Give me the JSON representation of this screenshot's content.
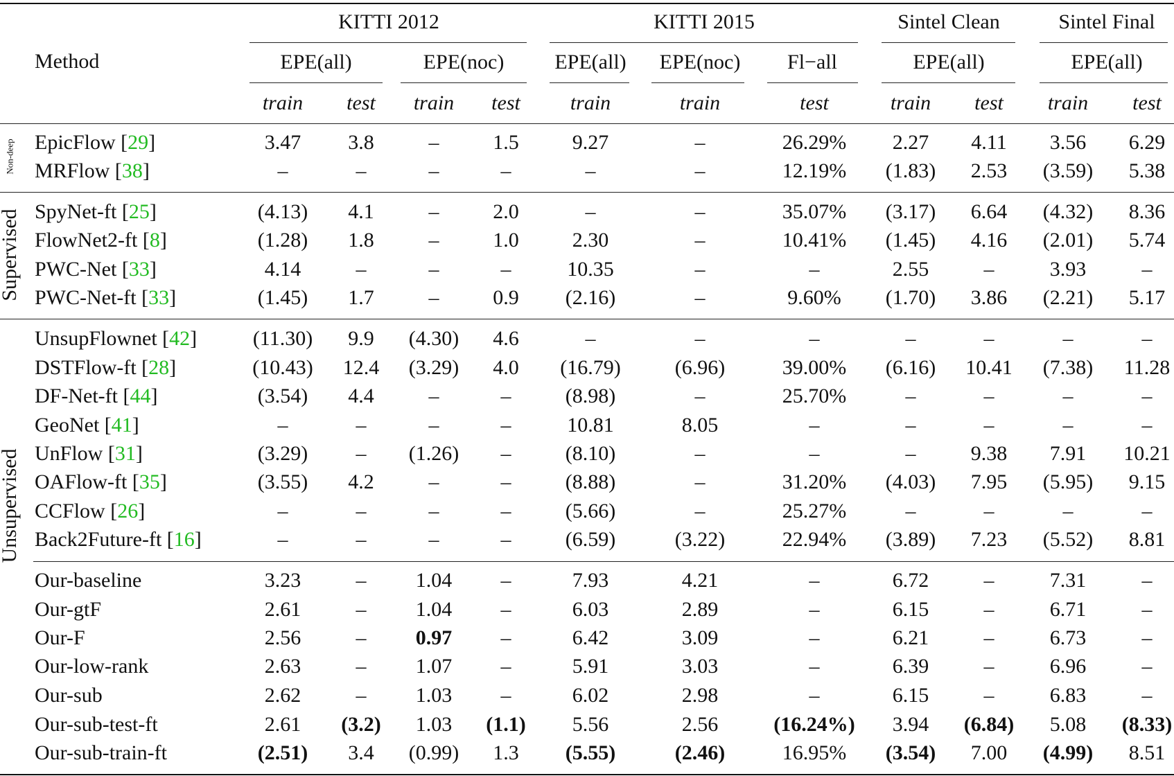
{
  "header": {
    "method": "Method",
    "groups": [
      "KITTI 2012",
      "KITTI 2015",
      "Sintel Clean",
      "Sintel Final"
    ],
    "metrics": [
      "EPE(all)",
      "EPE(noc)",
      "EPE(all)",
      "EPE(noc)",
      "Fl−all",
      "EPE(all)",
      "EPE(all)"
    ],
    "splits": [
      "train",
      "test",
      "train",
      "test",
      "train",
      "train",
      "test",
      "train",
      "test",
      "train",
      "test"
    ]
  },
  "section_labels": [
    "Non-deep",
    "Supervised",
    "Unsupervised"
  ],
  "rows": [
    {
      "name": "EpicFlow [",
      "cite": "29",
      "close": "]",
      "cells": [
        "3.47",
        "3.8",
        "–",
        "1.5",
        "9.27",
        "–",
        "26.29%",
        "2.27",
        "4.11",
        "3.56",
        "6.29"
      ]
    },
    {
      "name": "MRFlow [",
      "cite": "38",
      "close": "]",
      "cells": [
        "–",
        "–",
        "–",
        "–",
        "–",
        "–",
        "12.19%",
        "(1.83)",
        "2.53",
        "(3.59)",
        "5.38"
      ]
    },
    {
      "name": "SpyNet-ft [",
      "cite": "25",
      "close": "]",
      "cells": [
        "(4.13)",
        "4.1",
        "–",
        "2.0",
        "–",
        "–",
        "35.07%",
        "(3.17)",
        "6.64",
        "(4.32)",
        "8.36"
      ]
    },
    {
      "name": "FlowNet2-ft [",
      "cite": "8",
      "close": "]",
      "cells": [
        "(1.28)",
        "1.8",
        "–",
        "1.0",
        "2.30",
        "–",
        "10.41%",
        "(1.45)",
        "4.16",
        "(2.01)",
        "5.74"
      ]
    },
    {
      "name": "PWC-Net [",
      "cite": "33",
      "close": "]",
      "cells": [
        "4.14",
        "–",
        "–",
        "–",
        "10.35",
        "–",
        "–",
        "2.55",
        "–",
        "3.93",
        "–"
      ]
    },
    {
      "name": "PWC-Net-ft [",
      "cite": "33",
      "close": "]",
      "cells": [
        "(1.45)",
        "1.7",
        "–",
        "0.9",
        "(2.16)",
        "–",
        "9.60%",
        "(1.70)",
        "3.86",
        "(2.21)",
        "5.17"
      ]
    },
    {
      "name": "UnsupFlownet [",
      "cite": "42",
      "close": "]",
      "cells": [
        "(11.30)",
        "9.9",
        "(4.30)",
        "4.6",
        "–",
        "–",
        "–",
        "–",
        "–",
        "–",
        "–"
      ]
    },
    {
      "name": "DSTFlow-ft [",
      "cite": "28",
      "close": "]",
      "cells": [
        "(10.43)",
        "12.4",
        "(3.29)",
        "4.0",
        "(16.79)",
        "(6.96)",
        "39.00%",
        "(6.16)",
        "10.41",
        "(7.38)",
        "11.28"
      ]
    },
    {
      "name": "DF-Net-ft [",
      "cite": "44",
      "close": "]",
      "cells": [
        "(3.54)",
        "4.4",
        "–",
        "–",
        "(8.98)",
        "–",
        "25.70%",
        "–",
        "–",
        "–",
        "–"
      ]
    },
    {
      "name": "GeoNet [",
      "cite": "41",
      "close": "]",
      "cells": [
        "–",
        "–",
        "–",
        "–",
        "10.81",
        "8.05",
        "–",
        "–",
        "–",
        "–",
        "–"
      ]
    },
    {
      "name": "UnFlow [",
      "cite": "31",
      "close": "]",
      "cells": [
        "(3.29)",
        "–",
        "(1.26)",
        "–",
        "(8.10)",
        "–",
        "–",
        "–",
        "9.38",
        "7.91",
        "10.21"
      ]
    },
    {
      "name": "OAFlow-ft [",
      "cite": "35",
      "close": "]",
      "cells": [
        "(3.55)",
        "4.2",
        "–",
        "–",
        "(8.88)",
        "–",
        "31.20%",
        "(4.03)",
        "7.95",
        "(5.95)",
        "9.15"
      ]
    },
    {
      "name": "CCFlow [",
      "cite": "26",
      "close": "]",
      "cells": [
        "–",
        "–",
        "–",
        "–",
        "(5.66)",
        "–",
        "25.27%",
        "–",
        "–",
        "–",
        "–"
      ]
    },
    {
      "name": "Back2Future-ft [",
      "cite": "16",
      "close": "]",
      "cells": [
        "–",
        "–",
        "–",
        "–",
        "(6.59)",
        "(3.22)",
        "22.94%",
        "(3.89)",
        "7.23",
        "(5.52)",
        "8.81"
      ]
    },
    {
      "name": "Our-baseline",
      "cite": "",
      "close": "",
      "cells": [
        "3.23",
        "–",
        "1.04",
        "–",
        "7.93",
        "4.21",
        "–",
        "6.72",
        "–",
        "7.31",
        "–"
      ]
    },
    {
      "name": "Our-gtF",
      "cite": "",
      "close": "",
      "cells": [
        "2.61",
        "–",
        "1.04",
        "–",
        "6.03",
        "2.89",
        "–",
        "6.15",
        "–",
        "6.71",
        "–"
      ]
    },
    {
      "name": "Our-F",
      "cite": "",
      "close": "",
      "cells": [
        "2.56",
        "–",
        "0.97",
        "–",
        "6.42",
        "3.09",
        "–",
        "6.21",
        "–",
        "6.73",
        "–"
      ]
    },
    {
      "name": "Our-low-rank",
      "cite": "",
      "close": "",
      "cells": [
        "2.63",
        "–",
        "1.07",
        "–",
        "5.91",
        "3.03",
        "–",
        "6.39",
        "–",
        "6.96",
        "–"
      ]
    },
    {
      "name": "Our-sub",
      "cite": "",
      "close": "",
      "cells": [
        "2.62",
        "–",
        "1.03",
        "–",
        "6.02",
        "2.98",
        "–",
        "6.15",
        "–",
        "6.83",
        "–"
      ]
    },
    {
      "name": "Our-sub-test-ft",
      "cite": "",
      "close": "",
      "cells": [
        "2.61",
        "(3.2)",
        "1.03",
        "(1.1)",
        "5.56",
        "2.56",
        "(16.24%)",
        "3.94",
        "(6.84)",
        "5.08",
        "(8.33)"
      ]
    },
    {
      "name": "Our-sub-train-ft",
      "cite": "",
      "close": "",
      "cells": [
        "(2.51)",
        "3.4",
        "(0.99)",
        "1.3",
        "(5.55)",
        "(2.46)",
        "16.95%",
        "(3.54)",
        "7.00",
        "(4.99)",
        "8.51"
      ]
    }
  ],
  "bold_cells": [
    [
      16,
      2
    ],
    [
      19,
      1
    ],
    [
      19,
      3
    ],
    [
      19,
      6
    ],
    [
      19,
      8
    ],
    [
      19,
      10
    ],
    [
      20,
      0
    ],
    [
      20,
      4
    ],
    [
      20,
      5
    ],
    [
      20,
      7
    ],
    [
      20,
      9
    ]
  ]
}
